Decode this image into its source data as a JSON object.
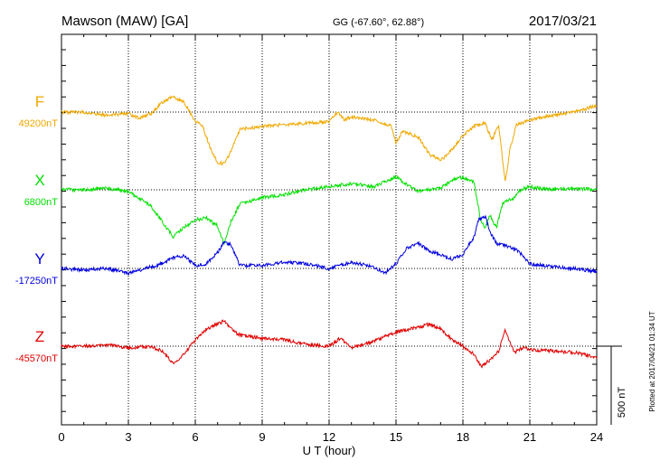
{
  "header": {
    "station": "Mawson (MAW)  [GA]",
    "coords": "GG (-67.60°,  62.88°)",
    "date": "2017/03/21"
  },
  "plotted_note": "Plotted at 2017/04/21 01:34  UT",
  "scale_label": "500 nT",
  "chart_data": {
    "type": "line",
    "title": "Mawson (MAW)  [GA]",
    "xlabel": "U T (hour)",
    "ylabel": "",
    "xlim": [
      0,
      24
    ],
    "x_ticks": [
      "0",
      "3",
      "6",
      "9",
      "12",
      "15",
      "18",
      "21",
      "24"
    ],
    "grid": true,
    "units": "nT",
    "scale_bar_nT": 500,
    "series": [
      {
        "name": "F",
        "baseline_label": "49200nT",
        "baseline": 49200,
        "color": "#f0a800",
        "x": [
          0,
          1,
          2,
          3,
          3.5,
          4,
          4.5,
          5,
          5.5,
          6,
          6.3,
          6.7,
          7,
          7.3,
          7.6,
          8,
          9,
          10,
          11,
          12,
          12.4,
          12.7,
          13,
          14,
          14.8,
          15,
          15.3,
          16,
          16.5,
          17,
          17.5,
          18,
          18.5,
          19,
          19.3,
          19.6,
          19.9,
          20.1,
          20.4,
          21,
          22,
          23,
          24
        ],
        "y": [
          49200,
          49200,
          49180,
          49190,
          49160,
          49190,
          49260,
          49300,
          49260,
          49140,
          49120,
          48960,
          48880,
          48870,
          48950,
          49090,
          49110,
          49120,
          49130,
          49140,
          49200,
          49150,
          49170,
          49150,
          49110,
          49000,
          49080,
          49040,
          48930,
          48890,
          48960,
          49050,
          49110,
          49130,
          49020,
          49120,
          48750,
          48960,
          49120,
          49150,
          49180,
          49200,
          49240
        ]
      },
      {
        "name": "X",
        "baseline_label": "6800nT",
        "baseline": 6800,
        "color": "#00e000",
        "x": [
          0,
          1,
          2,
          3,
          4,
          4.5,
          5,
          5.5,
          6,
          6.5,
          7,
          7.3,
          7.6,
          8,
          9,
          10,
          11,
          12,
          13,
          14,
          15,
          16,
          17,
          17.5,
          18,
          18.5,
          18.8,
          19,
          19.2,
          19.5,
          19.8,
          20.2,
          20.6,
          21,
          22,
          23,
          24
        ],
        "y": [
          6800,
          6800,
          6810,
          6790,
          6700,
          6600,
          6500,
          6560,
          6610,
          6620,
          6570,
          6450,
          6600,
          6710,
          6750,
          6770,
          6800,
          6820,
          6840,
          6820,
          6880,
          6790,
          6810,
          6860,
          6880,
          6850,
          6600,
          6560,
          6640,
          6560,
          6720,
          6740,
          6800,
          6820,
          6800,
          6810,
          6800
        ]
      },
      {
        "name": "Y",
        "baseline_label": "-17250nT",
        "baseline": -17250,
        "color": "#0000e0",
        "x": [
          0,
          1,
          2,
          3,
          4,
          4.5,
          5,
          5.5,
          6,
          6.5,
          7,
          7.3,
          7.6,
          8,
          9,
          10,
          11,
          12,
          13,
          14,
          14.5,
          15,
          15.5,
          16,
          16.5,
          17,
          17.5,
          18,
          18.5,
          18.7,
          19,
          19.2,
          19.5,
          20,
          20.5,
          21,
          22,
          23,
          24
        ],
        "y": [
          -17250,
          -17260,
          -17250,
          -17280,
          -17240,
          -17220,
          -17180,
          -17170,
          -17230,
          -17220,
          -17150,
          -17080,
          -17100,
          -17230,
          -17230,
          -17210,
          -17220,
          -17250,
          -17210,
          -17240,
          -17280,
          -17220,
          -17120,
          -17090,
          -17140,
          -17160,
          -17190,
          -17160,
          -17050,
          -16940,
          -16920,
          -17010,
          -17090,
          -17110,
          -17140,
          -17220,
          -17240,
          -17250,
          -17270
        ]
      },
      {
        "name": "Z",
        "baseline_label": "-45570nT",
        "baseline": -45570,
        "color": "#e00000",
        "x": [
          0,
          1,
          2,
          3,
          4,
          4.5,
          5,
          5.5,
          6,
          6.5,
          7,
          7.3,
          7.6,
          8,
          9,
          10,
          11,
          12,
          12.5,
          13,
          14,
          15,
          16,
          16.5,
          17,
          17.5,
          18,
          18.5,
          18.8,
          19.2,
          19.6,
          19.9,
          20.3,
          20.7,
          21,
          22,
          23,
          24
        ],
        "y": [
          -45570,
          -45570,
          -45560,
          -45580,
          -45570,
          -45600,
          -45680,
          -45620,
          -45530,
          -45460,
          -45430,
          -45410,
          -45460,
          -45500,
          -45520,
          -45530,
          -45560,
          -45570,
          -45520,
          -45580,
          -45540,
          -45480,
          -45450,
          -45430,
          -45460,
          -45530,
          -45570,
          -45620,
          -45700,
          -45660,
          -45600,
          -45470,
          -45610,
          -45580,
          -45590,
          -45600,
          -45610,
          -45640
        ]
      }
    ]
  }
}
